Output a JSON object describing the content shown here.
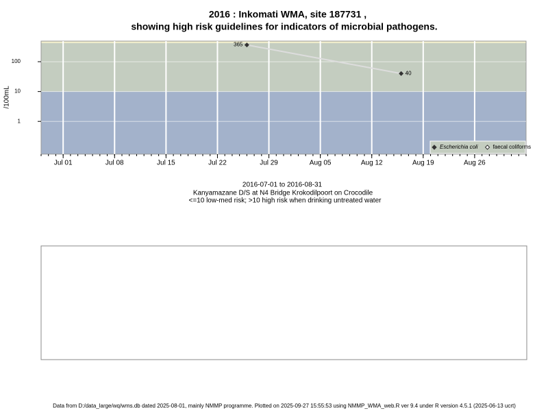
{
  "chart_data": {
    "type": "line",
    "title": "2016 : Inkomati WMA, site 187731 ,",
    "subtitle": "showing high risk guidelines for indicators of microbial pathogens.",
    "y_label": "/100mL",
    "x_label": "2016-07-01 to 2016-08-31",
    "captions": [
      "Kanyamazane D/S at N4 Bridge Krokodilpoort on Crocodile",
      "<=10 low-med risk; >10 high risk when drinking untreated water"
    ],
    "footer": "Data from D:/data_large/wq/wms.db dated 2025-08-01, mainly NMMP programme. Plotted on 2025-09-27 15:55:53 using NMMP_WMA_web.R ver 9.4 under R version 4.5.1 (2025-06-13 ucrt)",
    "x": [
      "2016-07-26",
      "2016-08-16"
    ],
    "series": [
      {
        "name": "Escherichia coli",
        "color": "#333333",
        "line_color": "#dddddd",
        "values": [
          365,
          40
        ]
      },
      {
        "name": "faecal coliforms",
        "color": "#333333",
        "values": [
          null,
          null
        ]
      }
    ],
    "xlim": [
      "2016-06-28",
      "2016-09-02"
    ],
    "xticks": [
      {
        "value": "2016-07-01",
        "label": "Jul 01"
      },
      {
        "value": "2016-07-08",
        "label": "Jul 08"
      },
      {
        "value": "2016-07-15",
        "label": "Jul 15"
      },
      {
        "value": "2016-07-22",
        "label": "Jul 22"
      },
      {
        "value": "2016-07-29",
        "label": "Jul 29"
      },
      {
        "value": "2016-08-05",
        "label": "Aug 05"
      },
      {
        "value": "2016-08-12",
        "label": "Aug 12"
      },
      {
        "value": "2016-08-19",
        "label": "Aug 19"
      },
      {
        "value": "2016-08-26",
        "label": "Aug 26"
      }
    ],
    "ylim": [
      0.08,
      490
    ],
    "yticks": [
      1,
      10,
      100
    ],
    "log_y": true,
    "grid": true,
    "threshold": 10,
    "band_colors": [
      "#a3b2cb",
      "#c4cdc0"
    ],
    "legend": "bottom-right"
  }
}
